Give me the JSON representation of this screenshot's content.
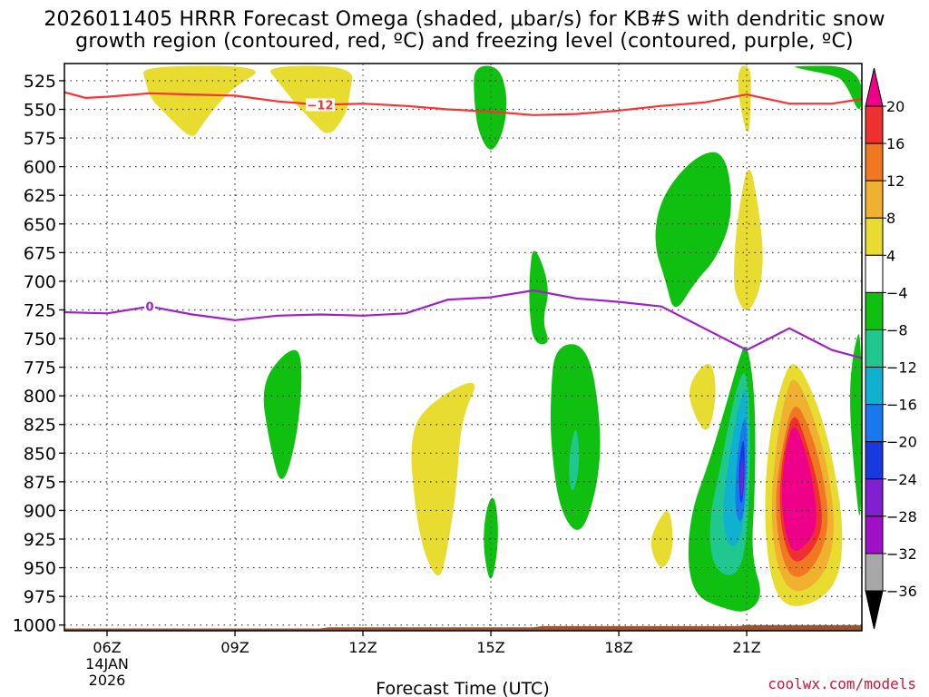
{
  "chart_data": {
    "type": "heatmap",
    "title_line1": "2026011405 HRRR Forecast Omega (shaded, μbar/s) for KB#S with dendritic snow",
    "title_line2": "growth region (contoured, red, ºC) and freezing level (contoured, purple, ºC)",
    "xlabel": "Forecast Time (UTC)",
    "ylabel": "",
    "x_range_hours": [
      5,
      23.7
    ],
    "y_range_mb": [
      510,
      1005
    ],
    "x_ticks": [
      {
        "hour": 6,
        "label": "06Z",
        "date": "14JAN",
        "year": "2026"
      },
      {
        "hour": 9,
        "label": "09Z"
      },
      {
        "hour": 12,
        "label": "12Z"
      },
      {
        "hour": 15,
        "label": "15Z"
      },
      {
        "hour": 18,
        "label": "18Z"
      },
      {
        "hour": 21,
        "label": "21Z"
      }
    ],
    "y_ticks": [
      525,
      550,
      575,
      600,
      625,
      650,
      675,
      700,
      725,
      750,
      775,
      800,
      825,
      850,
      875,
      900,
      925,
      950,
      975,
      1000
    ],
    "colorbar": {
      "labels": [
        "20",
        "16",
        "12",
        "8",
        "4",
        "−4",
        "−8",
        "−12",
        "−16",
        "−20",
        "−24",
        "−28",
        "−32",
        "−36"
      ],
      "levels": [
        20,
        16,
        12,
        8,
        4,
        -4,
        -8,
        -12,
        -16,
        -20,
        -24,
        -28,
        -32,
        -36
      ],
      "top_color": "#ee0088",
      "bands": [
        "#ee3030",
        "#f07820",
        "#f0b030",
        "#e8dc30",
        "#ffffff",
        "#10c010",
        "#20c890",
        "#10b0d0",
        "#1878f0",
        "#1838e0",
        "#8020d0",
        "#a010c8",
        "#a8a8a8"
      ],
      "bottom_color": "#000000"
    },
    "contours": [
      {
        "name": "dendritic-snow-growth (-12 C)",
        "label": "−12",
        "color": "#ff3030",
        "points": [
          [
            5,
            535
          ],
          [
            5.5,
            540
          ],
          [
            6,
            539
          ],
          [
            7,
            536
          ],
          [
            8,
            537
          ],
          [
            9,
            538
          ],
          [
            10,
            543
          ],
          [
            11,
            546
          ],
          [
            12,
            545
          ],
          [
            13,
            547
          ],
          [
            14,
            550
          ],
          [
            15,
            552
          ],
          [
            16,
            555
          ],
          [
            17,
            554
          ],
          [
            18,
            551
          ],
          [
            19,
            547
          ],
          [
            20,
            544
          ],
          [
            21,
            537
          ],
          [
            22,
            545
          ],
          [
            23,
            545
          ],
          [
            23.7,
            541
          ]
        ]
      },
      {
        "name": "freezing-level (0 C)",
        "label": "0",
        "color": "#a020c8",
        "points": [
          [
            5,
            727
          ],
          [
            6,
            728
          ],
          [
            7,
            722
          ],
          [
            8,
            729
          ],
          [
            9,
            734
          ],
          [
            10,
            730
          ],
          [
            11,
            729
          ],
          [
            12,
            730
          ],
          [
            13,
            728
          ],
          [
            14,
            716
          ],
          [
            15,
            714
          ],
          [
            16,
            708
          ],
          [
            17,
            715
          ],
          [
            18,
            718
          ],
          [
            19,
            722
          ],
          [
            20,
            741
          ],
          [
            21,
            760
          ],
          [
            22,
            741
          ],
          [
            23,
            760
          ],
          [
            23.7,
            767
          ]
        ]
      }
    ],
    "shaded_regions": [
      {
        "value_band": "4 to 8",
        "points": [
          [
            6.8,
            512
          ],
          [
            9.8,
            512
          ],
          [
            9,
            530
          ],
          [
            8.6,
            545
          ],
          [
            8.2,
            565
          ],
          [
            8,
            577
          ],
          [
            7.4,
            555
          ],
          [
            7,
            540
          ],
          [
            6.9,
            525
          ]
        ]
      },
      {
        "value_band": "4 to 8",
        "points": [
          [
            9.7,
            512
          ],
          [
            11.8,
            512
          ],
          [
            11.7,
            535
          ],
          [
            11.6,
            555
          ],
          [
            11.2,
            575
          ],
          [
            10.8,
            560
          ],
          [
            10.3,
            540
          ],
          [
            10,
            525
          ]
        ]
      },
      {
        "value_band": "-4 to -8",
        "points": [
          [
            14.6,
            512
          ],
          [
            15.2,
            512
          ],
          [
            15.4,
            540
          ],
          [
            15.3,
            570
          ],
          [
            15,
            590
          ],
          [
            14.7,
            570
          ],
          [
            14.6,
            540
          ]
        ]
      },
      {
        "value_band": "4 to 8",
        "points": [
          [
            20.8,
            512
          ],
          [
            21.1,
            512
          ],
          [
            21.1,
            540
          ],
          [
            21.05,
            580
          ],
          [
            20.8,
            540
          ]
        ]
      },
      {
        "value_band": "-4 to -8",
        "points": [
          [
            22,
            512
          ],
          [
            23.7,
            512
          ],
          [
            23.7,
            560
          ],
          [
            23.3,
            525
          ],
          [
            23,
            520
          ],
          [
            22.3,
            515
          ]
        ]
      },
      {
        "value_band": "-4 to -8",
        "points": [
          [
            19.8,
            590
          ],
          [
            20.5,
            585
          ],
          [
            20.7,
            640
          ],
          [
            20.3,
            680
          ],
          [
            19.8,
            700
          ],
          [
            19.3,
            730
          ],
          [
            19.1,
            700
          ],
          [
            18.8,
            665
          ],
          [
            19,
            625
          ]
        ]
      },
      {
        "value_band": "4 to 8",
        "points": [
          [
            21.05,
            590
          ],
          [
            21.3,
            640
          ],
          [
            21.4,
            680
          ],
          [
            21.3,
            710
          ],
          [
            21,
            730
          ],
          [
            20.7,
            710
          ],
          [
            20.7,
            680
          ],
          [
            20.8,
            640
          ]
        ]
      },
      {
        "value_band": "-4 to -8",
        "points": [
          [
            16,
            665
          ],
          [
            16.4,
            705
          ],
          [
            16.2,
            735
          ],
          [
            16.4,
            755
          ],
          [
            16,
            755
          ],
          [
            15.9,
            725
          ],
          [
            15.9,
            695
          ]
        ]
      },
      {
        "value_band": "-4 to -8",
        "points": [
          [
            16.5,
            755
          ],
          [
            17.3,
            755
          ],
          [
            17.6,
            830
          ],
          [
            17.5,
            880
          ],
          [
            17.1,
            925
          ],
          [
            16.6,
            900
          ],
          [
            16.4,
            840
          ],
          [
            16.4,
            800
          ]
        ]
      },
      {
        "value_band": "-8 to -12",
        "points": [
          [
            17,
            820
          ],
          [
            17.1,
            860
          ],
          [
            16.9,
            890
          ],
          [
            16.8,
            860
          ]
        ]
      },
      {
        "value_band": "-4 to -8",
        "points": [
          [
            10.2,
            760
          ],
          [
            10.6,
            760
          ],
          [
            10.5,
            830
          ],
          [
            10.1,
            885
          ],
          [
            9.8,
            840
          ],
          [
            9.6,
            790
          ]
        ]
      },
      {
        "value_band": "4 to 8",
        "points": [
          [
            14.8,
            780
          ],
          [
            14.3,
            820
          ],
          [
            14.2,
            880
          ],
          [
            14,
            930
          ],
          [
            13.8,
            965
          ],
          [
            13.4,
            935
          ],
          [
            13.2,
            890
          ],
          [
            13.1,
            840
          ],
          [
            13.4,
            810
          ]
        ]
      },
      {
        "value_band": "-4 to -8",
        "points": [
          [
            15.1,
            885
          ],
          [
            15.2,
            925
          ],
          [
            15,
            970
          ],
          [
            14.8,
            930
          ],
          [
            14.9,
            895
          ]
        ]
      },
      {
        "value_band": "4 to 8",
        "points": [
          [
            19.2,
            895
          ],
          [
            19.3,
            935
          ],
          [
            19,
            955
          ],
          [
            18.7,
            930
          ],
          [
            18.9,
            910
          ]
        ]
      },
      {
        "value_band": "4 to 8",
        "points": [
          [
            20.2,
            770
          ],
          [
            20.3,
            800
          ],
          [
            20.1,
            835
          ],
          [
            19.8,
            820
          ],
          [
            19.6,
            795
          ],
          [
            19.9,
            775
          ]
        ]
      },
      {
        "value_band": "-4 to -8",
        "points": [
          [
            21,
            750
          ],
          [
            21.2,
            800
          ],
          [
            21.2,
            880
          ],
          [
            21.1,
            940
          ],
          [
            21.4,
            975
          ],
          [
            21,
            990
          ],
          [
            20.4,
            985
          ],
          [
            19.8,
            975
          ],
          [
            19.6,
            945
          ],
          [
            19.7,
            900
          ],
          [
            20.1,
            860
          ],
          [
            20.5,
            810
          ],
          [
            20.8,
            770
          ]
        ]
      },
      {
        "value_band": "-8 to -12",
        "points": [
          [
            21,
            770
          ],
          [
            21.1,
            840
          ],
          [
            21,
            935
          ],
          [
            20.7,
            960
          ],
          [
            20.2,
            950
          ],
          [
            20.1,
            910
          ],
          [
            20.4,
            860
          ],
          [
            20.7,
            800
          ]
        ]
      },
      {
        "value_band": "-12 to -16",
        "points": [
          [
            21,
            785
          ],
          [
            21.05,
            850
          ],
          [
            20.9,
            925
          ],
          [
            20.6,
            935
          ],
          [
            20.4,
            905
          ],
          [
            20.6,
            850
          ],
          [
            20.8,
            810
          ]
        ]
      },
      {
        "value_band": "-16 to -20",
        "points": [
          [
            21,
            810
          ],
          [
            21,
            870
          ],
          [
            20.9,
            915
          ],
          [
            20.7,
            900
          ],
          [
            20.8,
            840
          ]
        ]
      },
      {
        "value_band": "-20 to -24",
        "points": [
          [
            20.95,
            830
          ],
          [
            20.95,
            880
          ],
          [
            20.85,
            900
          ],
          [
            20.8,
            860
          ]
        ]
      },
      {
        "value_band": "-24 to -28",
        "points": [
          [
            20.9,
            850
          ],
          [
            20.92,
            885
          ],
          [
            20.85,
            890
          ],
          [
            20.86,
            860
          ]
        ]
      },
      {
        "value_band": "-4 to -8",
        "points": [
          [
            23.7,
            735
          ],
          [
            23.7,
            930
          ],
          [
            23.5,
            860
          ],
          [
            23.4,
            800
          ],
          [
            23.5,
            760
          ]
        ]
      },
      {
        "value_band": "4 to 8",
        "points": [
          [
            22.1,
            765
          ],
          [
            22.6,
            800
          ],
          [
            23,
            850
          ],
          [
            23.3,
            920
          ],
          [
            23.1,
            970
          ],
          [
            22.1,
            988
          ],
          [
            21.6,
            970
          ],
          [
            21.4,
            910
          ],
          [
            21.5,
            840
          ],
          [
            21.8,
            790
          ]
        ]
      },
      {
        "value_band": "8 to 12",
        "points": [
          [
            22.1,
            780
          ],
          [
            22.5,
            810
          ],
          [
            22.9,
            860
          ],
          [
            23.1,
            920
          ],
          [
            22.8,
            960
          ],
          [
            22.1,
            975
          ],
          [
            21.7,
            950
          ],
          [
            21.55,
            900
          ],
          [
            21.7,
            840
          ],
          [
            21.9,
            800
          ]
        ]
      },
      {
        "value_band": "12 to 16",
        "points": [
          [
            22.1,
            800
          ],
          [
            22.5,
            830
          ],
          [
            22.8,
            870
          ],
          [
            22.95,
            915
          ],
          [
            22.6,
            950
          ],
          [
            22.1,
            962
          ],
          [
            21.8,
            940
          ],
          [
            21.65,
            895
          ],
          [
            21.8,
            850
          ]
        ]
      },
      {
        "value_band": "16 to 20",
        "points": [
          [
            22.1,
            810
          ],
          [
            22.4,
            840
          ],
          [
            22.7,
            880
          ],
          [
            22.8,
            915
          ],
          [
            22.5,
            938
          ],
          [
            22.1,
            948
          ],
          [
            21.85,
            925
          ],
          [
            21.75,
            890
          ],
          [
            21.85,
            850
          ]
        ]
      },
      {
        "value_band": "> 20",
        "points": [
          [
            22.1,
            820
          ],
          [
            22.4,
            850
          ],
          [
            22.6,
            885
          ],
          [
            22.65,
            915
          ],
          [
            22.4,
            930
          ],
          [
            22.1,
            938
          ],
          [
            21.9,
            920
          ],
          [
            21.8,
            885
          ],
          [
            21.9,
            850
          ]
        ]
      }
    ],
    "band_colors": {
      "4 to 8": "#e8dc30",
      "8 to 12": "#f0b030",
      "12 to 16": "#f07820",
      "16 to 20": "#ee3030",
      "> 20": "#ee0088",
      "-4 to -8": "#10c010",
      "-8 to -12": "#20c890",
      "-12 to -16": "#10b0d0",
      "-16 to -20": "#1878f0",
      "-20 to -24": "#1838e0",
      "-24 to -28": "#8020d0"
    },
    "terrain_color": "#a0522d",
    "terrain_points": [
      [
        5,
        1003
      ],
      [
        11,
        1003
      ],
      [
        11.2,
        1002
      ],
      [
        16,
        1002
      ],
      [
        16.2,
        1001
      ],
      [
        20.8,
        1001
      ],
      [
        21,
        1000
      ],
      [
        23.7,
        1000
      ]
    ]
  },
  "credit": "coolwx.com/models"
}
